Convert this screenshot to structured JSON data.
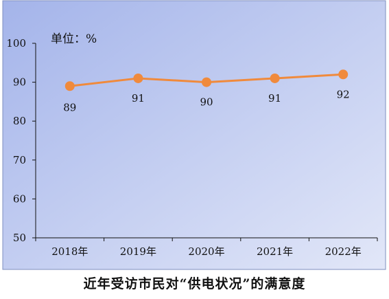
{
  "caption": "近年受访市民对“供电状况”的满意度",
  "unit_label": "单位：%",
  "colors": {
    "background_start": "#a8b8ec",
    "background_end": "#dde3f7",
    "line": "#f08a3c",
    "marker": "#f08a3c",
    "axis": "#111111"
  },
  "chart_data": {
    "type": "line",
    "categories": [
      "2018年",
      "2019年",
      "2020年",
      "2021年",
      "2022年"
    ],
    "series": [
      {
        "values": [
          89,
          91,
          90,
          91,
          92
        ]
      }
    ],
    "data_labels": [
      "89",
      "91",
      "90",
      "91",
      "92"
    ],
    "ylim": [
      50,
      100
    ],
    "yticks": [
      "50",
      "60",
      "70",
      "80",
      "90",
      "100"
    ],
    "grid": false,
    "legend": "none"
  }
}
